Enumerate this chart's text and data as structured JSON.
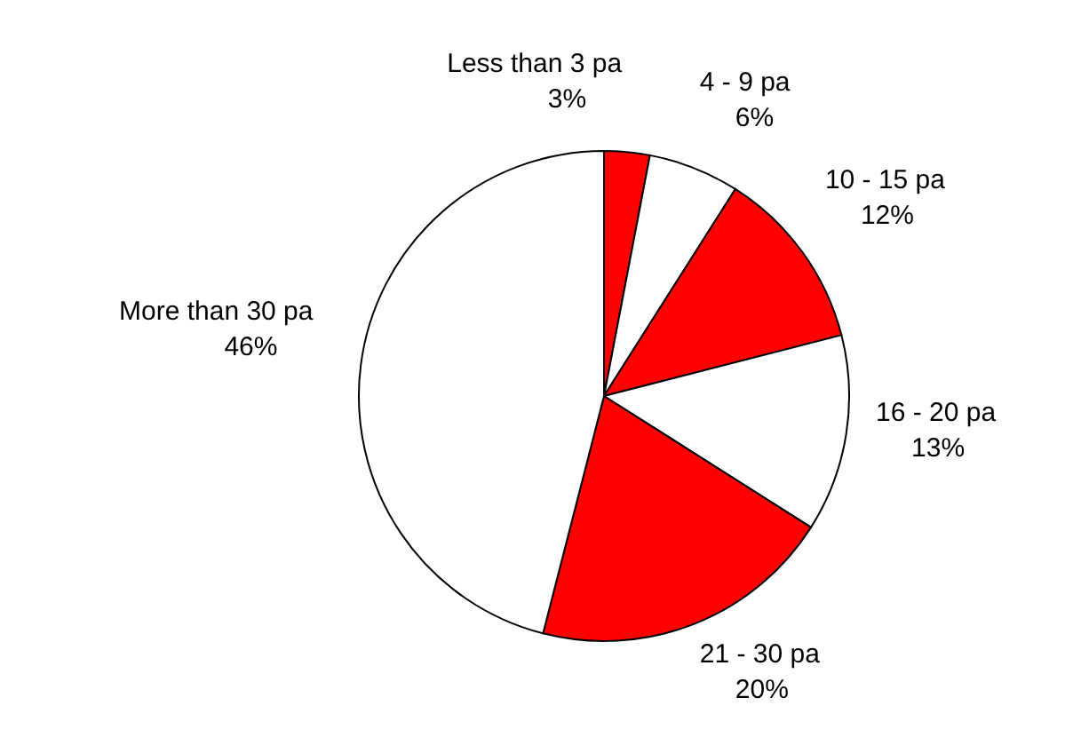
{
  "chart_data": {
    "type": "pie",
    "categories": [
      "Less than 3 pa",
      "4 - 9 pa",
      "10 - 15 pa",
      "16 - 20 pa",
      "21 - 30 pa",
      "More than 30 pa"
    ],
    "values": [
      3,
      6,
      12,
      13,
      20,
      46
    ],
    "colors": [
      "#ff0000",
      "#ffffff",
      "#ff0000",
      "#ffffff",
      "#ff0000",
      "#ffffff"
    ],
    "value_labels": [
      "3%",
      "6%",
      "12%",
      "13%",
      "20%",
      "46%"
    ],
    "legend": false
  }
}
